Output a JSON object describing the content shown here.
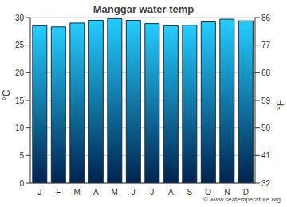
{
  "chart_data": {
    "type": "bar",
    "title": "Manggar water temp",
    "categories": [
      "J",
      "F",
      "M",
      "A",
      "M",
      "J",
      "J",
      "A",
      "S",
      "O",
      "N",
      "D"
    ],
    "values": [
      28.5,
      28.3,
      29.0,
      29.5,
      29.8,
      29.5,
      28.9,
      28.5,
      28.6,
      29.2,
      29.7,
      29.4
    ],
    "color": "#24cdff",
    "ylabel": "°C",
    "y2label": "°F",
    "ylim": [
      0,
      30
    ],
    "yticks": [
      0,
      5,
      10,
      15,
      20,
      25,
      30
    ],
    "y2lim": [
      32,
      86
    ],
    "y2ticks": [
      32,
      41,
      50,
      59,
      68,
      77,
      86
    ],
    "grid": true,
    "source": "© www.seatemperature.org"
  }
}
